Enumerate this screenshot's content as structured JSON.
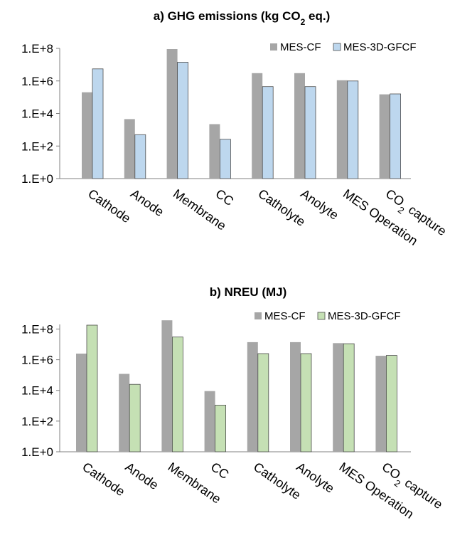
{
  "chart_data": [
    {
      "type": "bar",
      "title": "a) GHG emissions (kg CO₂ eq.)",
      "title_parts": {
        "pre": "a) GHG emissions (kg CO",
        "sub": "2",
        "post": " eq.)"
      },
      "xlabel": "",
      "ylabel": "",
      "yscale": "log",
      "ylim": [
        1,
        100000000
      ],
      "yticks": [
        "1.E+0",
        "1.E+2",
        "1.E+4",
        "1.E+6",
        "1.E+8"
      ],
      "categories": [
        "Cathode",
        "Anode",
        "Membrane",
        "CC",
        "Catholyte",
        "Anolyte",
        "MES Operation",
        "CO₂ capture"
      ],
      "series": [
        {
          "name": "MES-CF",
          "color": "#a6a6a6",
          "values": [
            200000,
            4500,
            90000000,
            2200,
            3000000,
            3000000,
            1100000,
            150000
          ]
        },
        {
          "name": "MES-3D-GFCF",
          "color": "#bdd7ee",
          "values": [
            5500000,
            500,
            14000000,
            260,
            450000,
            450000,
            1000000,
            160000
          ]
        }
      ],
      "legend": "top-right",
      "grid": false
    },
    {
      "type": "bar",
      "title": "b) NREU (MJ)",
      "xlabel": "",
      "ylabel": "",
      "yscale": "log",
      "ylim": [
        1,
        400000000
      ],
      "yticks": [
        "1.E+0",
        "1.E+2",
        "1.E+4",
        "1.E+6",
        "1.E+8"
      ],
      "categories": [
        "Cathode",
        "Anode",
        "Membrane",
        "CC",
        "Catholyte",
        "Anolyte",
        "MES Operation",
        "CO₂ capture"
      ],
      "series": [
        {
          "name": "MES-CF",
          "color": "#a6a6a6",
          "values": [
            2500000,
            120000,
            370000000,
            9000,
            14000000,
            14000000,
            12000000,
            1800000
          ]
        },
        {
          "name": "MES-3D-GFCF",
          "color": "#c5e0b4",
          "values": [
            180000000,
            25000,
            30000000,
            1100,
            2500000,
            2500000,
            11000000,
            1900000
          ]
        }
      ],
      "legend": "top-right",
      "grid": false
    }
  ]
}
